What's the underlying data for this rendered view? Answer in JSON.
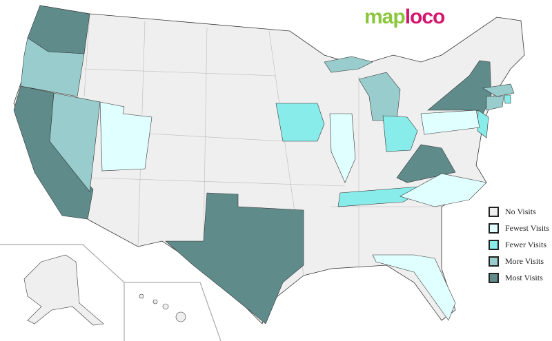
{
  "logo": {
    "part1": "map",
    "part2": "loco",
    "color1": "#8cc63f",
    "color2": "#d4166f"
  },
  "colors": {
    "none": "#efefef",
    "fewest": "#e0ffff",
    "fewer": "#88ecea",
    "more": "#99cccc",
    "most": "#5f8b8b"
  },
  "legend": [
    {
      "label": "No Visits",
      "level": "none"
    },
    {
      "label": "Fewest Visits",
      "level": "fewest"
    },
    {
      "label": "Fewer Visits",
      "level": "fewer"
    },
    {
      "label": "More Visits",
      "level": "more"
    },
    {
      "label": "Most Visits",
      "level": "most"
    }
  ],
  "states": {
    "most": [
      "Washington",
      "California",
      "Texas",
      "Virginia",
      "New York"
    ],
    "more": [
      "Oregon",
      "Nevada",
      "Michigan",
      "Massachusetts",
      "Connecticut"
    ],
    "fewer": [
      "Iowa",
      "Ohio",
      "Tennessee",
      "New Jersey",
      "Rhode Island"
    ],
    "fewest": [
      "Utah",
      "Illinois",
      "Pennsylvania",
      "North Carolina",
      "Florida"
    ]
  }
}
